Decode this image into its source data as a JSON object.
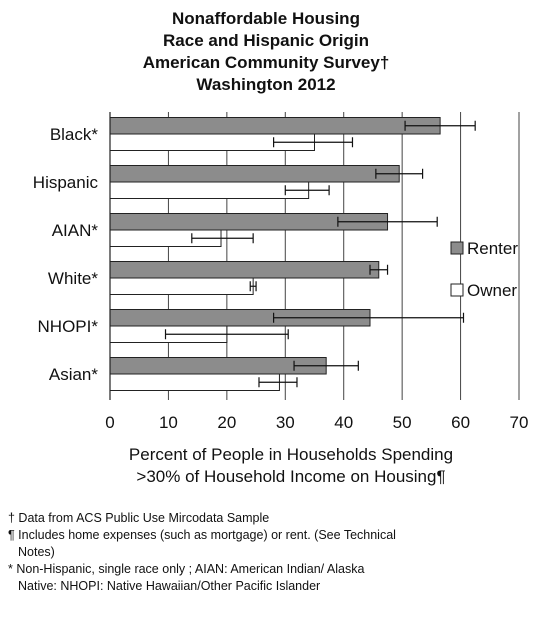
{
  "chart_data": {
    "type": "bar",
    "orientation": "horizontal",
    "title_lines": [
      "Nonaffordable Housing",
      "Race and Hispanic Origin",
      "American Community Survey†",
      "Washington 2012"
    ],
    "categories": [
      "Black*",
      "Hispanic",
      "AIAN*",
      "White*",
      "NHOPI*",
      "Asian*"
    ],
    "series": [
      {
        "name": "Renter",
        "color": "#8c8c8c",
        "values": [
          56.5,
          49.5,
          47.5,
          46.0,
          44.5,
          37.0
        ],
        "error_low": [
          50.5,
          45.5,
          39.0,
          44.5,
          28.0,
          31.5
        ],
        "error_high": [
          62.5,
          53.5,
          56.0,
          47.5,
          60.5,
          42.5
        ]
      },
      {
        "name": "Owner",
        "color": "#ffffff",
        "values": [
          35.0,
          34.0,
          19.0,
          24.5,
          20.0,
          29.0
        ],
        "error_low": [
          28.0,
          30.0,
          14.0,
          24.0,
          9.5,
          25.5
        ],
        "error_high": [
          41.5,
          37.5,
          24.5,
          25.0,
          30.5,
          32.0
        ]
      }
    ],
    "xlim": [
      0,
      70
    ],
    "xticks": [
      "0",
      "10",
      "20",
      "30",
      "40",
      "50",
      "60",
      "70"
    ],
    "xlabel_lines": [
      "Percent of People in Households Spending",
      ">30% of Household Income on Housing¶"
    ],
    "grid": "vertical",
    "legend_position": "right",
    "colors": {
      "renter": "#8c8c8c",
      "owner": "#ffffff",
      "stroke": "#222222",
      "grid": "#444444"
    }
  },
  "notes": {
    "source": "† Data from ACS Public Use Mircodata Sample",
    "includes": "¶ Includes home expenses (such as mortgage) or rent. (See Technical",
    "includes_cont": "Notes)",
    "nonhispanic": "* Non-Hispanic, single race only ;  AIAN: American Indian/ Alaska",
    "nonhispanic_cont": "Native: NHOPI: Native Hawaiian/Other Pacific Islander"
  }
}
